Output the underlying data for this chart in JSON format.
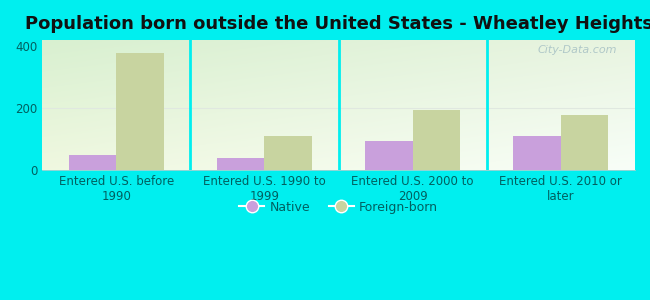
{
  "title": "Population born outside the United States - Wheatley Heights",
  "categories": [
    "Entered U.S. before\n1990",
    "Entered U.S. 1990 to\n1999",
    "Entered U.S. 2000 to\n2009",
    "Entered U.S. 2010 or\nlater"
  ],
  "native_values": [
    50,
    40,
    95,
    110
  ],
  "foreign_values": [
    380,
    110,
    195,
    178
  ],
  "native_color": "#c9a0dc",
  "foreign_color": "#c8d4a0",
  "background_color": "#00efef",
  "plot_bg_topleft": "#d8f0d0",
  "plot_bg_topright": "#e8f4e0",
  "plot_bg_bottomleft": "#f0f8e0",
  "plot_bg_bottomright": "#f8fef8",
  "ylim": [
    0,
    420
  ],
  "yticks": [
    0,
    200,
    400
  ],
  "bar_width": 0.32,
  "title_fontsize": 13,
  "tick_fontsize": 8.5,
  "tick_color": "#006060",
  "legend_fontsize": 9,
  "legend_native": "Native",
  "legend_foreign": "Foreign-born",
  "watermark": "City-Data.com",
  "watermark_color": "#b0c8c8",
  "grid_color": "#e0e8e0"
}
